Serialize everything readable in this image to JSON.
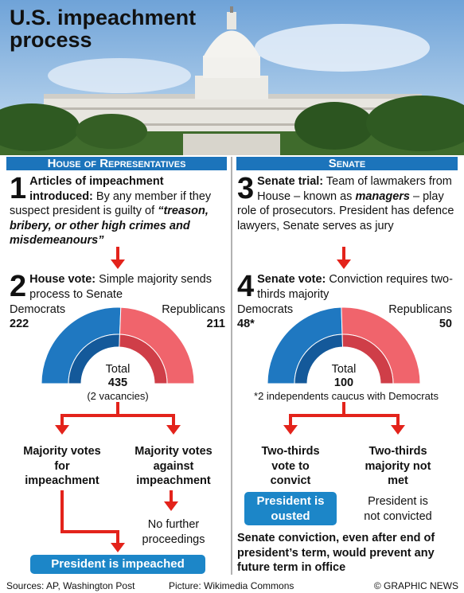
{
  "header": {
    "title": "U.S. impeachment process"
  },
  "house": {
    "heading": "House of Representatives",
    "step1": {
      "number": "1",
      "lead": "Articles of impeachment introduced:",
      "text": "By any member if they suspect president is guilty of",
      "quote": "“treason, bribery, or other high crimes and misdemeanours”"
    },
    "step2": {
      "number": "2",
      "lead": "House vote:",
      "text": "Simple majority sends process to Senate"
    },
    "vote": {
      "left_label": "Democrats",
      "left_value": 222,
      "right_label": "Republicans",
      "right_value": 211,
      "total_label": "Total",
      "total": 435,
      "note": "(2 vacancies)"
    },
    "outcomes": [
      "Majority votes for impeachment",
      "Majority votes against impeachment"
    ],
    "no_further": "No further proceedings",
    "result": "President is impeached"
  },
  "senate": {
    "heading": "Senate",
    "step3": {
      "number": "3",
      "lead": "Senate trial:",
      "text": "Team of lawmakers from House – known as",
      "emph": "managers",
      "text2": "– play role of prosecutors. President has defence lawyers, Senate serves as jury"
    },
    "step4": {
      "number": "4",
      "lead": "Senate vote:",
      "text": "Conviction requires two-thirds majority"
    },
    "vote": {
      "left_label": "Democrats",
      "left_value": {
        "value": 48,
        "label": "48*"
      },
      "right_label": "Republicans",
      "right_value": 50,
      "total_label": "Total",
      "total": 100,
      "note": "*2 independents caucus with Democrats"
    },
    "outcomes": [
      "Two-thirds vote to convict",
      "Two-thirds majority not met"
    ],
    "result": "President is ousted",
    "not_convicted": "President is not convicted",
    "conclusion": "Senate conviction, even after end of president’s term, would prevent any future term in office"
  },
  "footer": {
    "sources": "Sources: AP, Washington Post",
    "picture": "Picture: Wikimedia Commons",
    "credit": "© GRAPHIC NEWS"
  }
}
